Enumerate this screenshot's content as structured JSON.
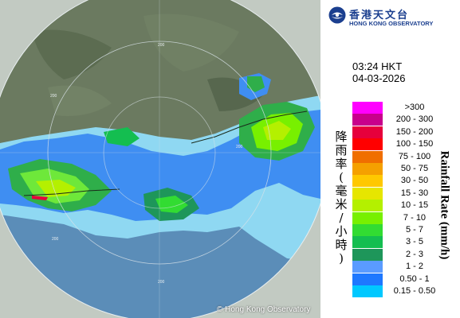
{
  "header": {
    "org_cn": "香港天文台",
    "org_en": "HONG KONG OBSERVATORY"
  },
  "timestamp": {
    "time": "03:24 HKT",
    "date": "04-03-2026"
  },
  "legend": {
    "title_cn": [
      "降",
      "雨",
      "率",
      "(",
      "毫",
      "米",
      "/",
      "小",
      "時",
      ")"
    ],
    "title_en": "Rainfall Rate (mm/h)",
    "items": [
      {
        "label": ">300",
        "color": "#ff00ff"
      },
      {
        "label": "200 - 300",
        "color": "#c8008c"
      },
      {
        "label": "150 - 200",
        "color": "#e6003c"
      },
      {
        "label": "100 - 150",
        "color": "#ff0000"
      },
      {
        "label": "75 - 100",
        "color": "#f06e00"
      },
      {
        "label": "50 - 75",
        "color": "#f5a000"
      },
      {
        "label": "30 - 50",
        "color": "#ffc800"
      },
      {
        "label": "15 - 30",
        "color": "#e6e600"
      },
      {
        "label": "10 - 15",
        "color": "#b4f000"
      },
      {
        "label": "7 - 10",
        "color": "#78f000"
      },
      {
        "label": "5 - 7",
        "color": "#32dc32"
      },
      {
        "label": "3 - 5",
        "color": "#14be50"
      },
      {
        "label": "2 - 3",
        "color": "#1e965a"
      },
      {
        "label": "1 - 2",
        "color": "#5a9bff"
      },
      {
        "label": "0.50 - 1",
        "color": "#1e78ff"
      },
      {
        "label": "0.15 - 0.50",
        "color": "#00c8ff"
      }
    ]
  },
  "map": {
    "range_ring_labels": [
      "200",
      "200",
      "200",
      "200",
      "200"
    ],
    "copyright": "© Hong Kong Observatory"
  }
}
